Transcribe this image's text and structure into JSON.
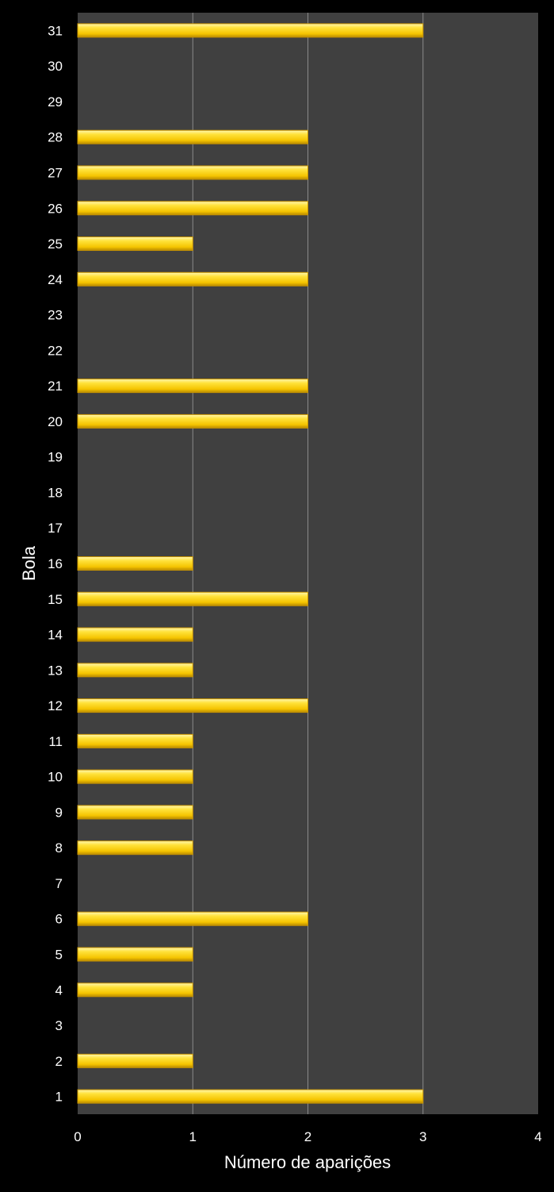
{
  "chart_data": {
    "type": "bar",
    "orientation": "horizontal",
    "xlabel": "Número de aparições",
    "ylabel": "Bola",
    "xlim": [
      0,
      4
    ],
    "xticks": [
      "0",
      "1",
      "2",
      "3",
      "4"
    ],
    "grid": true,
    "categories": [
      "1",
      "2",
      "3",
      "4",
      "5",
      "6",
      "7",
      "8",
      "9",
      "10",
      "11",
      "12",
      "13",
      "14",
      "15",
      "16",
      "17",
      "18",
      "19",
      "20",
      "21",
      "22",
      "23",
      "24",
      "25",
      "26",
      "27",
      "28",
      "29",
      "30",
      "31"
    ],
    "values": [
      3,
      1,
      0,
      1,
      1,
      2,
      0,
      1,
      1,
      1,
      1,
      2,
      1,
      1,
      2,
      1,
      0,
      0,
      0,
      2,
      2,
      0,
      0,
      2,
      1,
      2,
      2,
      2,
      0,
      0,
      3
    ],
    "colors": {
      "background": "#000000",
      "plot_area": "#404040",
      "gridline": "#8a8a8a",
      "bar_fill": "#ffd21a",
      "bar_highlight": "#fff3a0",
      "bar_shadow": "#c89400",
      "text": "#ffffff"
    }
  }
}
